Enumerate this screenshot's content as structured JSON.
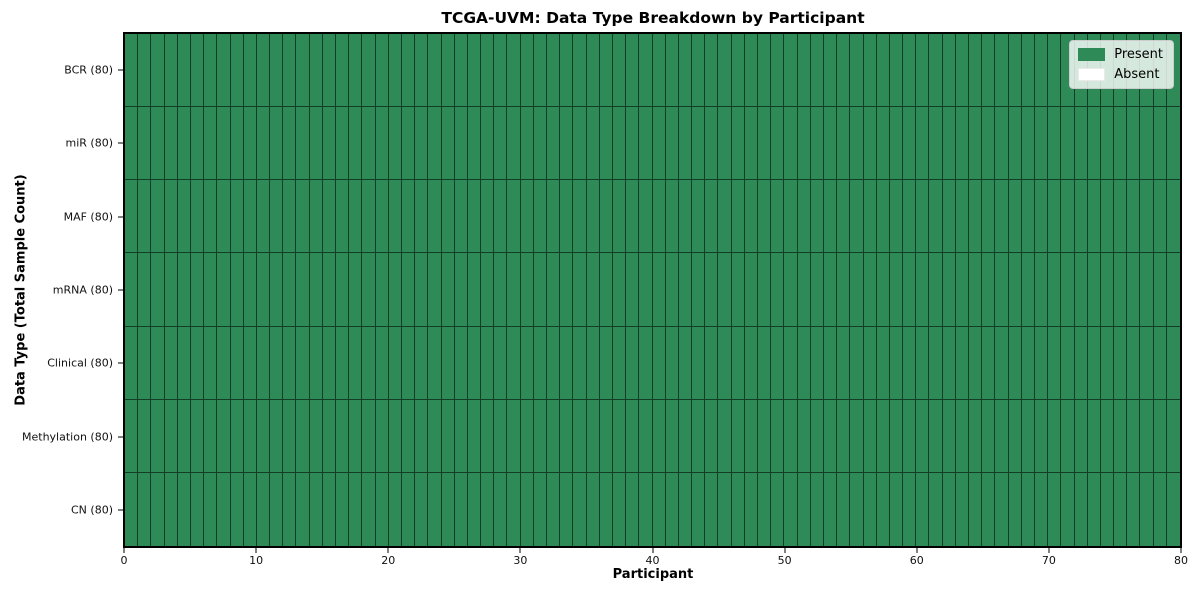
{
  "chart_data": {
    "type": "heatmap",
    "title": "TCGA-UVM: Data Type Breakdown by Participant",
    "xlabel": "Participant",
    "ylabel": "Data Type (Total Sample Count)",
    "x_ticks": [
      0,
      10,
      20,
      30,
      40,
      50,
      60,
      70,
      80
    ],
    "x_range": [
      0,
      80
    ],
    "n_participants": 80,
    "rows": [
      {
        "label": "BCR (80)",
        "data_type": "BCR",
        "total_samples": 80,
        "present_count": 80,
        "absent_count": 0
      },
      {
        "label": "miR (80)",
        "data_type": "miR",
        "total_samples": 80,
        "present_count": 80,
        "absent_count": 0
      },
      {
        "label": "MAF (80)",
        "data_type": "MAF",
        "total_samples": 80,
        "present_count": 80,
        "absent_count": 0
      },
      {
        "label": "mRNA (80)",
        "data_type": "mRNA",
        "total_samples": 80,
        "present_count": 80,
        "absent_count": 0
      },
      {
        "label": "Clinical (80)",
        "data_type": "Clinical",
        "total_samples": 80,
        "present_count": 80,
        "absent_count": 0
      },
      {
        "label": "Methylation (80)",
        "data_type": "Methylation",
        "total_samples": 80,
        "present_count": 80,
        "absent_count": 0
      },
      {
        "label": "CN (80)",
        "data_type": "CN",
        "total_samples": 80,
        "present_count": 80,
        "absent_count": 0
      }
    ],
    "all_cells_present": true,
    "legend": {
      "position": "upper right",
      "entries": [
        {
          "label": "Present",
          "color": "#2e8b57"
        },
        {
          "label": "Absent",
          "color": "#ffffff"
        }
      ]
    },
    "colors": {
      "present": "#2e8b57",
      "absent": "#ffffff",
      "cell_edge": "rgba(10, 32, 20, 0.72)",
      "spine": "#000000"
    },
    "grid": "cell-borders",
    "legend_on": true
  }
}
